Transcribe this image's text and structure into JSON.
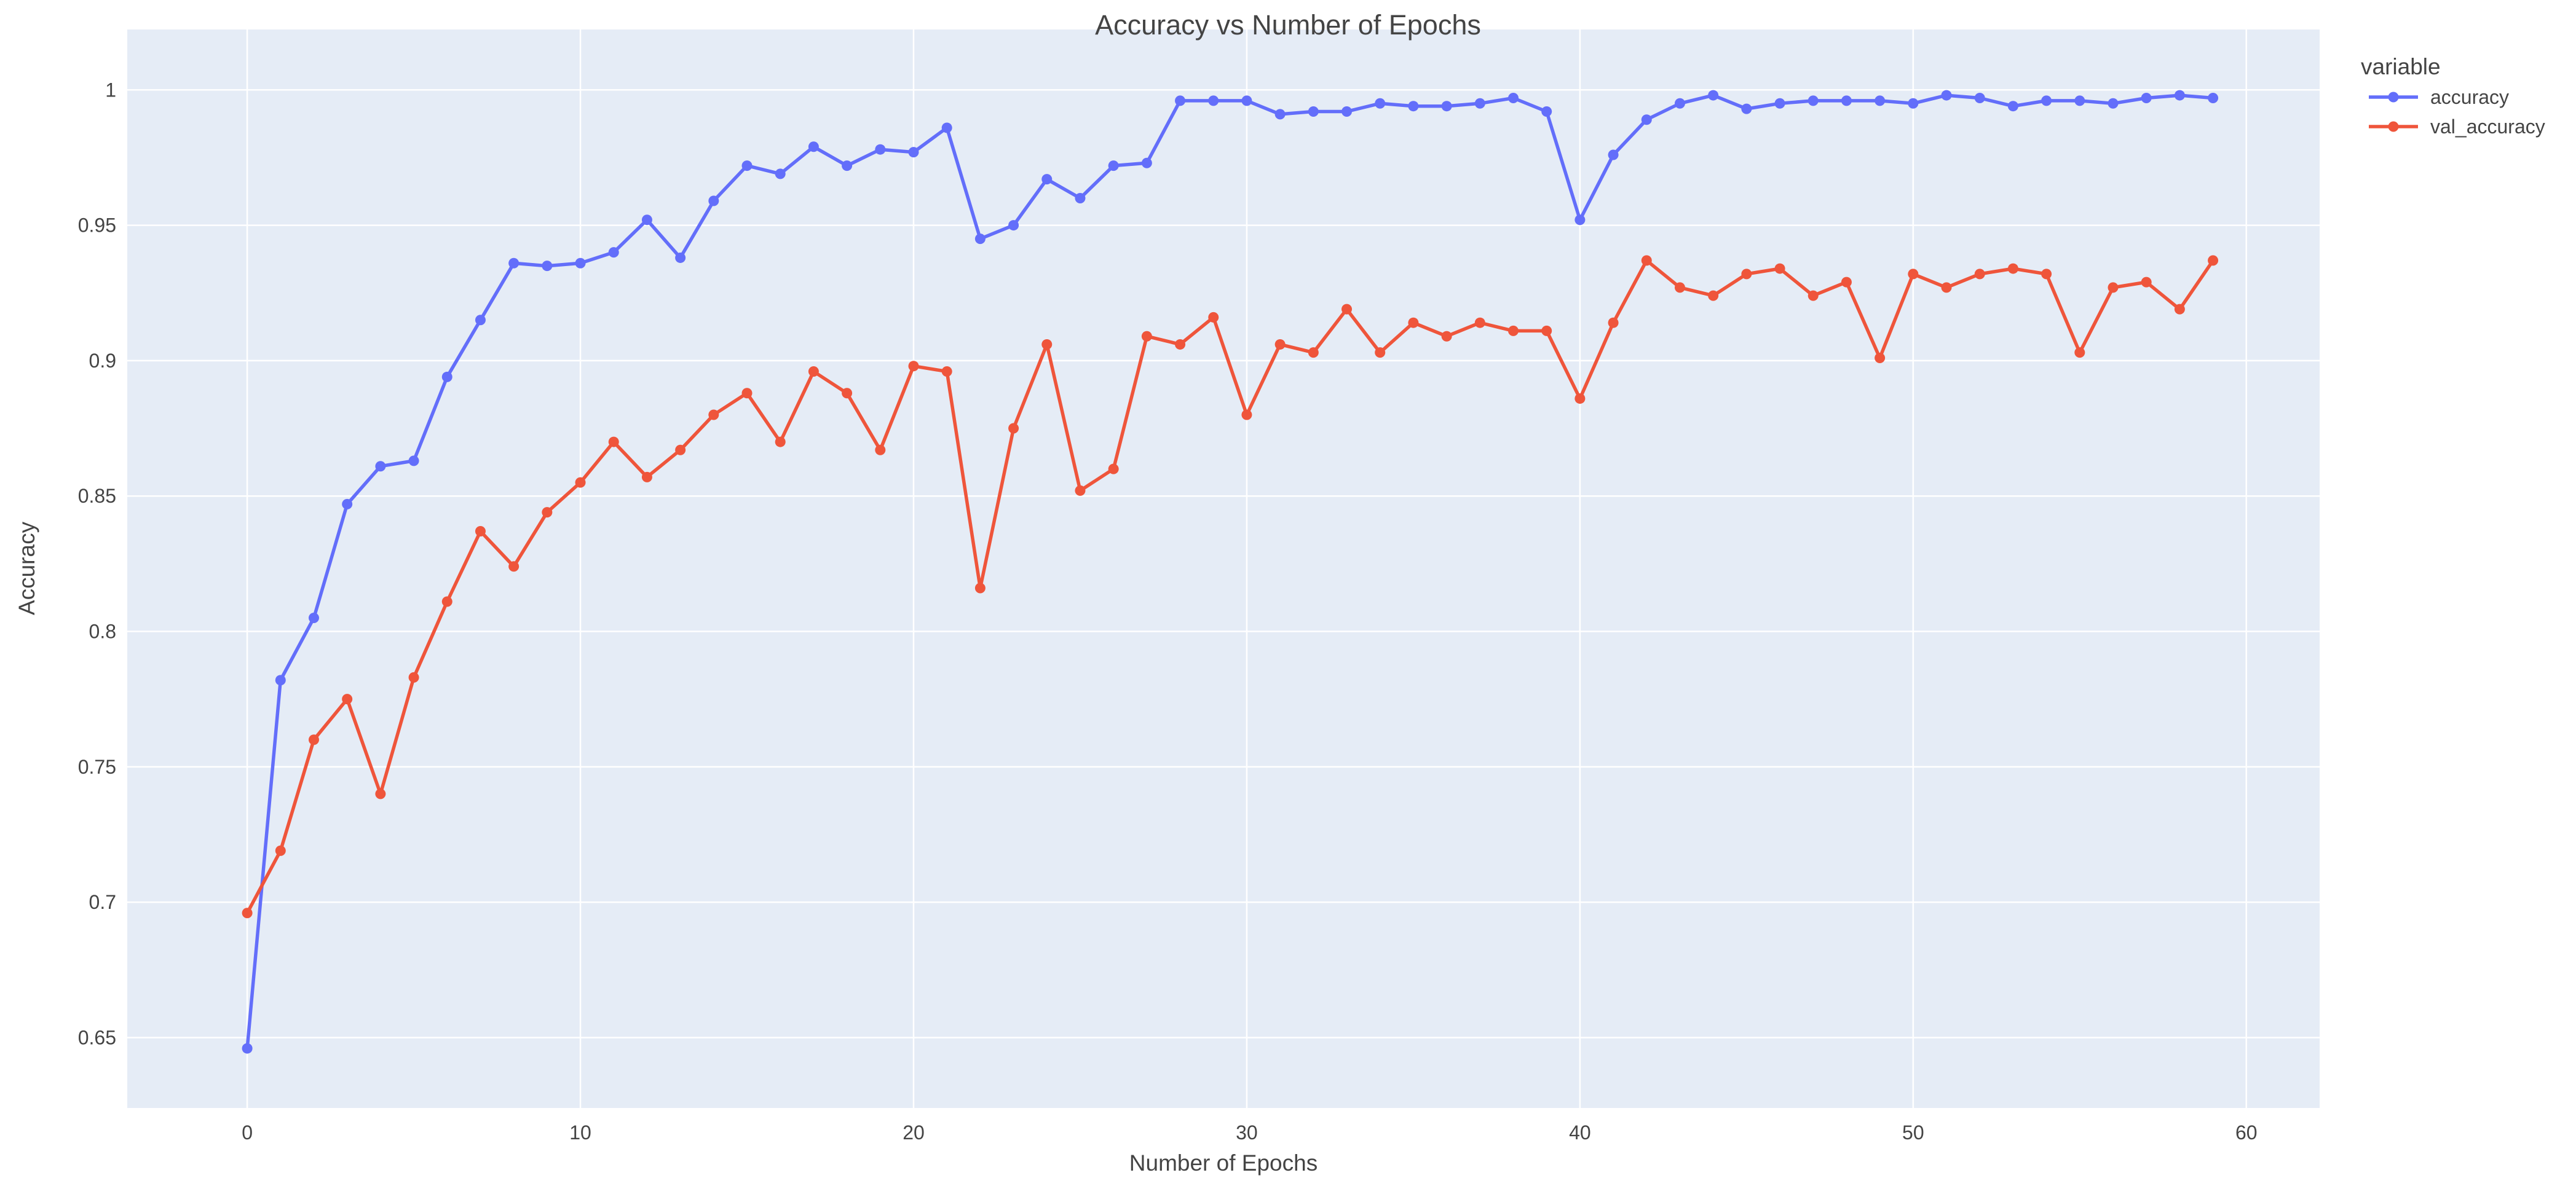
{
  "chart_data": {
    "type": "line",
    "title": "Accuracy vs Number of Epochs",
    "xlabel": "Number of Epochs",
    "ylabel": "Accuracy",
    "xlim": [
      -3.6,
      62.2
    ],
    "ylim": [
      0.624,
      1.0223
    ],
    "xticks": [
      0,
      10,
      20,
      30,
      40,
      50,
      60
    ],
    "xtick_labels": [
      "0",
      "10",
      "20",
      "30",
      "40",
      "50",
      "60"
    ],
    "yticks": [
      0.65,
      0.7,
      0.75,
      0.8,
      0.85,
      0.9,
      0.95,
      1
    ],
    "ytick_labels": [
      "0.65",
      "0.7",
      "0.75",
      "0.8",
      "0.85",
      "0.9",
      "0.95",
      "1"
    ],
    "grid": true,
    "plot_background": "#E5ECF6",
    "grid_color": "#ffffff",
    "legend": {
      "title": "variable",
      "placement": "top-right, outside plot"
    },
    "series": [
      {
        "name": "accuracy",
        "color": "#636EFA",
        "x": [
          0,
          1,
          2,
          3,
          4,
          5,
          6,
          7,
          8,
          9,
          10,
          11,
          12,
          13,
          14,
          15,
          16,
          17,
          18,
          19,
          20,
          21,
          22,
          23,
          24,
          25,
          26,
          27,
          28,
          29,
          30,
          31,
          32,
          33,
          34,
          35,
          36,
          37,
          38,
          39,
          40,
          41,
          42,
          43,
          44,
          45,
          46,
          47,
          48,
          49,
          50,
          51,
          52,
          53,
          54,
          55,
          56,
          57,
          58,
          59
        ],
        "values": [
          0.646,
          0.782,
          0.805,
          0.847,
          0.861,
          0.863,
          0.894,
          0.915,
          0.936,
          0.935,
          0.936,
          0.94,
          0.952,
          0.938,
          0.959,
          0.972,
          0.969,
          0.979,
          0.972,
          0.978,
          0.977,
          0.986,
          0.945,
          0.95,
          0.967,
          0.96,
          0.972,
          0.973,
          0.996,
          0.996,
          0.996,
          0.991,
          0.992,
          0.992,
          0.995,
          0.994,
          0.994,
          0.995,
          0.997,
          0.992,
          0.952,
          0.976,
          0.989,
          0.995,
          0.998,
          0.993,
          0.995,
          0.996,
          0.996,
          0.996,
          0.995,
          0.998,
          0.997,
          0.994,
          0.996,
          0.996,
          0.995,
          0.997,
          0.998,
          0.997
        ]
      },
      {
        "name": "val_accuracy",
        "color": "#EF553B",
        "x": [
          0,
          1,
          2,
          3,
          4,
          5,
          6,
          7,
          8,
          9,
          10,
          11,
          12,
          13,
          14,
          15,
          16,
          17,
          18,
          19,
          20,
          21,
          22,
          23,
          24,
          25,
          26,
          27,
          28,
          29,
          30,
          31,
          32,
          33,
          34,
          35,
          36,
          37,
          38,
          39,
          40,
          41,
          42,
          43,
          44,
          45,
          46,
          47,
          48,
          49,
          50,
          51,
          52,
          53,
          54,
          55,
          56,
          57,
          58,
          59
        ],
        "values": [
          0.696,
          0.719,
          0.76,
          0.775,
          0.74,
          0.783,
          0.811,
          0.837,
          0.824,
          0.844,
          0.855,
          0.87,
          0.857,
          0.867,
          0.88,
          0.888,
          0.87,
          0.896,
          0.888,
          0.867,
          0.898,
          0.896,
          0.816,
          0.875,
          0.906,
          0.852,
          0.86,
          0.909,
          0.906,
          0.916,
          0.88,
          0.906,
          0.903,
          0.919,
          0.903,
          0.914,
          0.909,
          0.914,
          0.911,
          0.911,
          0.886,
          0.914,
          0.937,
          0.927,
          0.924,
          0.932,
          0.934,
          0.924,
          0.929,
          0.901,
          0.932,
          0.927,
          0.932,
          0.934,
          0.932,
          0.903,
          0.927,
          0.929,
          0.919,
          0.937
        ]
      }
    ]
  }
}
